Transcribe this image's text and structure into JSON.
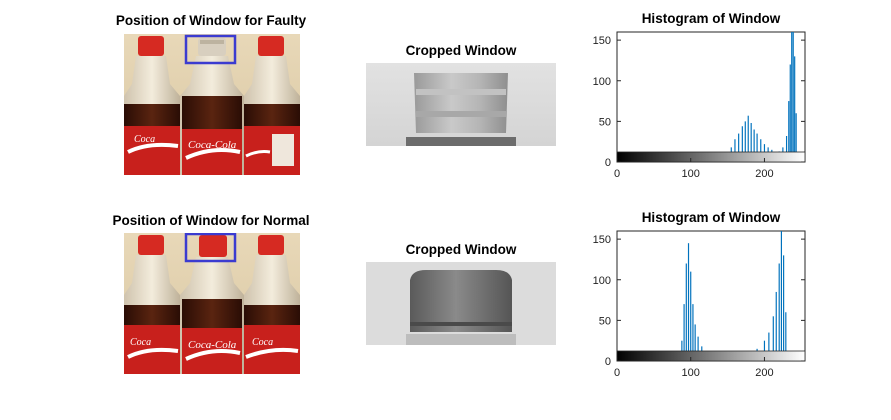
{
  "colors": {
    "bar": "#0072BD",
    "window_box": "#3b3bd0",
    "cap_red": "#d62a22",
    "label_red": "#c8201c",
    "cola_dark": "#3a1208",
    "background": "#ffffff"
  },
  "panels": {
    "faulty": {
      "photo_title": "Position of Window for Faulty",
      "crop_title": "Cropped Window",
      "hist_title": "Histogram of Window",
      "cap_state": "missing"
    },
    "normal": {
      "photo_title": "Position of Window for Normal",
      "crop_title": "Cropped Window",
      "hist_title": "Histogram of Window",
      "cap_state": "present"
    }
  },
  "chart_data": [
    {
      "type": "bar",
      "title": "Histogram of Window",
      "xlabel": "",
      "ylabel": "",
      "xlim": [
        0,
        255
      ],
      "ylim": [
        0,
        160
      ],
      "xticks": [
        0,
        100,
        200
      ],
      "yticks": [
        0,
        50,
        100,
        150
      ],
      "colorbar": "grayscale 0-255",
      "grid": false,
      "bins": [
        {
          "x": 130,
          "y": 4
        },
        {
          "x": 140,
          "y": 6
        },
        {
          "x": 148,
          "y": 10
        },
        {
          "x": 155,
          "y": 18
        },
        {
          "x": 160,
          "y": 28
        },
        {
          "x": 165,
          "y": 35
        },
        {
          "x": 170,
          "y": 44
        },
        {
          "x": 174,
          "y": 50
        },
        {
          "x": 178,
          "y": 57
        },
        {
          "x": 182,
          "y": 48
        },
        {
          "x": 186,
          "y": 40
        },
        {
          "x": 190,
          "y": 35
        },
        {
          "x": 195,
          "y": 28
        },
        {
          "x": 200,
          "y": 22
        },
        {
          "x": 205,
          "y": 18
        },
        {
          "x": 210,
          "y": 15
        },
        {
          "x": 215,
          "y": 12
        },
        {
          "x": 220,
          "y": 13
        },
        {
          "x": 225,
          "y": 18
        },
        {
          "x": 230,
          "y": 32
        },
        {
          "x": 233,
          "y": 75
        },
        {
          "x": 235,
          "y": 120
        },
        {
          "x": 237,
          "y": 160
        },
        {
          "x": 239,
          "y": 160
        },
        {
          "x": 241,
          "y": 130
        },
        {
          "x": 243,
          "y": 60
        },
        {
          "x": 245,
          "y": 10
        }
      ]
    },
    {
      "type": "bar",
      "title": "Histogram of Window",
      "xlabel": "",
      "ylabel": "",
      "xlim": [
        0,
        255
      ],
      "ylim": [
        0,
        160
      ],
      "xticks": [
        0,
        100,
        200
      ],
      "yticks": [
        0,
        50,
        100,
        150
      ],
      "colorbar": "grayscale 0-255",
      "grid": false,
      "bins": [
        {
          "x": 85,
          "y": 6
        },
        {
          "x": 88,
          "y": 25
        },
        {
          "x": 91,
          "y": 70
        },
        {
          "x": 94,
          "y": 120
        },
        {
          "x": 97,
          "y": 145
        },
        {
          "x": 100,
          "y": 110
        },
        {
          "x": 103,
          "y": 70
        },
        {
          "x": 106,
          "y": 45
        },
        {
          "x": 110,
          "y": 30
        },
        {
          "x": 115,
          "y": 18
        },
        {
          "x": 120,
          "y": 12
        },
        {
          "x": 130,
          "y": 8
        },
        {
          "x": 140,
          "y": 6
        },
        {
          "x": 150,
          "y": 5
        },
        {
          "x": 160,
          "y": 6
        },
        {
          "x": 170,
          "y": 7
        },
        {
          "x": 180,
          "y": 10
        },
        {
          "x": 190,
          "y": 15
        },
        {
          "x": 200,
          "y": 25
        },
        {
          "x": 206,
          "y": 35
        },
        {
          "x": 212,
          "y": 55
        },
        {
          "x": 216,
          "y": 85
        },
        {
          "x": 220,
          "y": 120
        },
        {
          "x": 223,
          "y": 160
        },
        {
          "x": 226,
          "y": 130
        },
        {
          "x": 229,
          "y": 60
        },
        {
          "x": 232,
          "y": 10
        }
      ]
    }
  ]
}
